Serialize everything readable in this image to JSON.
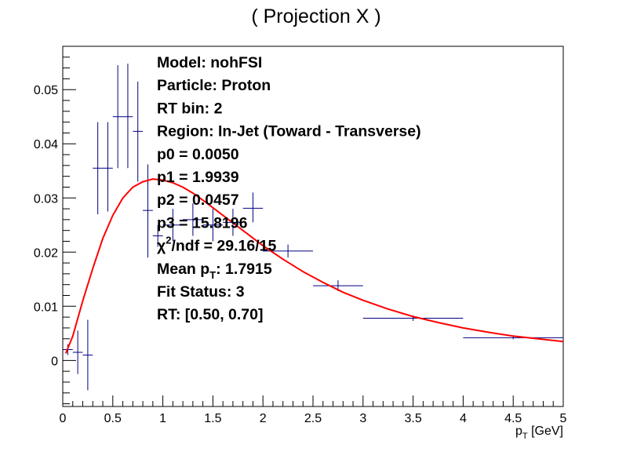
{
  "chart_data": {
    "type": "scatter",
    "title": "( Projection X )",
    "xlabel_base": "p",
    "xlabel_sub": "T",
    "xlabel_unit": " [GeV]",
    "ylabel": "",
    "xlim": [
      0,
      5
    ],
    "ylim": [
      -0.0085,
      0.058
    ],
    "grid": false,
    "x_ticks": [
      {
        "v": 0,
        "label": "0"
      },
      {
        "v": 0.5,
        "label": "0.5"
      },
      {
        "v": 1,
        "label": "1"
      },
      {
        "v": 1.5,
        "label": "1.5"
      },
      {
        "v": 2,
        "label": "2"
      },
      {
        "v": 2.5,
        "label": "2.5"
      },
      {
        "v": 3,
        "label": "3"
      },
      {
        "v": 3.5,
        "label": "3.5"
      },
      {
        "v": 4,
        "label": "4"
      },
      {
        "v": 4.5,
        "label": "4.5"
      },
      {
        "v": 5,
        "label": "5"
      }
    ],
    "y_ticks": [
      {
        "v": 0,
        "label": "0"
      },
      {
        "v": 0.01,
        "label": "0.01"
      },
      {
        "v": 0.02,
        "label": "0.02"
      },
      {
        "v": 0.03,
        "label": "0.03"
      },
      {
        "v": 0.04,
        "label": "0.04"
      },
      {
        "v": 0.05,
        "label": "0.05"
      }
    ],
    "points": [
      {
        "x": 0.05,
        "xlo": 0.0,
        "xhi": 0.1,
        "y": 0.002,
        "ylo": 0.001,
        "yhi": 0.003
      },
      {
        "x": 0.15,
        "xlo": 0.1,
        "xhi": 0.2,
        "y": 0.0015,
        "ylo": -0.0025,
        "yhi": 0.0055
      },
      {
        "x": 0.25,
        "xlo": 0.2,
        "xhi": 0.3,
        "y": 0.001,
        "ylo": -0.0055,
        "yhi": 0.0075
      },
      {
        "x": 0.35,
        "xlo": 0.3,
        "xhi": 0.4,
        "y": 0.0355,
        "ylo": 0.027,
        "yhi": 0.044
      },
      {
        "x": 0.45,
        "xlo": 0.4,
        "xhi": 0.5,
        "y": 0.0355,
        "ylo": 0.0275,
        "yhi": 0.044
      },
      {
        "x": 0.55,
        "xlo": 0.5,
        "xhi": 0.6,
        "y": 0.045,
        "ylo": 0.0355,
        "yhi": 0.0545
      },
      {
        "x": 0.65,
        "xlo": 0.6,
        "xhi": 0.7,
        "y": 0.045,
        "ylo": 0.0355,
        "yhi": 0.0548
      },
      {
        "x": 0.75,
        "xlo": 0.7,
        "xhi": 0.8,
        "y": 0.0423,
        "ylo": 0.033,
        "yhi": 0.0515
      },
      {
        "x": 0.85,
        "xlo": 0.8,
        "xhi": 0.9,
        "y": 0.0277,
        "ylo": 0.019,
        "yhi": 0.0362
      },
      {
        "x": 0.95,
        "xlo": 0.9,
        "xhi": 1.0,
        "y": 0.023,
        "ylo": 0.021,
        "yhi": 0.025
      },
      {
        "x": 1.1,
        "xlo": 1.0,
        "xhi": 1.2,
        "y": 0.025,
        "ylo": 0.022,
        "yhi": 0.028
      },
      {
        "x": 1.3,
        "xlo": 1.2,
        "xhi": 1.4,
        "y": 0.026,
        "ylo": 0.023,
        "yhi": 0.029
      },
      {
        "x": 1.5,
        "xlo": 1.4,
        "xhi": 1.6,
        "y": 0.025,
        "ylo": 0.022,
        "yhi": 0.028
      },
      {
        "x": 1.7,
        "xlo": 1.6,
        "xhi": 1.8,
        "y": 0.0255,
        "ylo": 0.023,
        "yhi": 0.028
      },
      {
        "x": 1.9,
        "xlo": 1.8,
        "xhi": 2.0,
        "y": 0.0281,
        "ylo": 0.0255,
        "yhi": 0.031
      },
      {
        "x": 2.25,
        "xlo": 2.0,
        "xhi": 2.5,
        "y": 0.0202,
        "ylo": 0.019,
        "yhi": 0.0214
      },
      {
        "x": 2.75,
        "xlo": 2.5,
        "xhi": 3.0,
        "y": 0.0138,
        "ylo": 0.0128,
        "yhi": 0.0148
      },
      {
        "x": 3.5,
        "xlo": 3.0,
        "xhi": 4.0,
        "y": 0.0078,
        "ylo": 0.0073,
        "yhi": 0.0083
      },
      {
        "x": 4.5,
        "xlo": 4.0,
        "xhi": 5.0,
        "y": 0.0042,
        "ylo": 0.0039,
        "yhi": 0.0045
      }
    ],
    "fit_curve": [
      [
        0.03,
        0.0013
      ],
      [
        0.1,
        0.0045
      ],
      [
        0.2,
        0.011
      ],
      [
        0.3,
        0.017
      ],
      [
        0.4,
        0.0225
      ],
      [
        0.5,
        0.0268
      ],
      [
        0.6,
        0.03
      ],
      [
        0.7,
        0.032
      ],
      [
        0.8,
        0.033
      ],
      [
        0.9,
        0.0335
      ],
      [
        1.0,
        0.0333
      ],
      [
        1.1,
        0.0328
      ],
      [
        1.2,
        0.032
      ],
      [
        1.3,
        0.0309
      ],
      [
        1.4,
        0.0296
      ],
      [
        1.5,
        0.0282
      ],
      [
        1.6,
        0.0268
      ],
      [
        1.7,
        0.0254
      ],
      [
        1.8,
        0.024
      ],
      [
        1.9,
        0.0226
      ],
      [
        2.0,
        0.0212
      ],
      [
        2.2,
        0.0187
      ],
      [
        2.4,
        0.0164
      ],
      [
        2.6,
        0.0144
      ],
      [
        2.8,
        0.0126
      ],
      [
        3.0,
        0.0111
      ],
      [
        3.25,
        0.0095
      ],
      [
        3.5,
        0.0081
      ],
      [
        3.75,
        0.007
      ],
      [
        4.0,
        0.006
      ],
      [
        4.25,
        0.0052
      ],
      [
        4.5,
        0.0045
      ],
      [
        4.75,
        0.004
      ],
      [
        5.0,
        0.0035
      ]
    ],
    "stats": [
      {
        "text": "Model: nohFSI"
      },
      {
        "text": "Particle: Proton"
      },
      {
        "text": "RT bin: 2"
      },
      {
        "text": "Region: In-Jet (Toward - Transverse)"
      },
      {
        "text": "p0 = 0.0050"
      },
      {
        "text": "p1 = 1.9939"
      },
      {
        "text": "p2 = 0.0457"
      },
      {
        "text": "p3 = 15.8196"
      },
      {
        "prefix": "χ",
        "sup": "2",
        "text": "/ndf = 29.16/15"
      },
      {
        "prefix": "Mean p",
        "sub": "T",
        "text": ": 1.7915"
      },
      {
        "text": "Fit Status: 3"
      },
      {
        "text": "RT: [0.50, 0.70]"
      }
    ],
    "colors": {
      "points": "#000080",
      "fit": "#ff0000",
      "axis": "#000000"
    }
  }
}
